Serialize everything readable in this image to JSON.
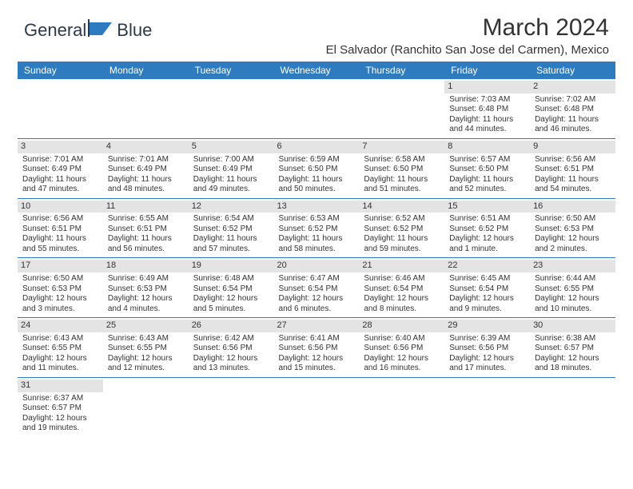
{
  "brand": {
    "name": "General",
    "suffix": "Blue",
    "logo_color": "#2f7bbf",
    "text_color": "#2b3a4a"
  },
  "title": "March 2024",
  "location": "El Salvador (Ranchito San Jose del Carmen), Mexico",
  "colors": {
    "header_bg": "#2f7bbf",
    "header_fg": "#ffffff",
    "daynum_bg": "#e4e4e4",
    "row_border": "#2f7bbf",
    "text": "#333333",
    "page_bg": "#ffffff"
  },
  "day_headers": [
    "Sunday",
    "Monday",
    "Tuesday",
    "Wednesday",
    "Thursday",
    "Friday",
    "Saturday"
  ],
  "weeks": [
    [
      {
        "n": "",
        "sr": "",
        "ss": "",
        "dl": ""
      },
      {
        "n": "",
        "sr": "",
        "ss": "",
        "dl": ""
      },
      {
        "n": "",
        "sr": "",
        "ss": "",
        "dl": ""
      },
      {
        "n": "",
        "sr": "",
        "ss": "",
        "dl": ""
      },
      {
        "n": "",
        "sr": "",
        "ss": "",
        "dl": ""
      },
      {
        "n": "1",
        "sr": "Sunrise: 7:03 AM",
        "ss": "Sunset: 6:48 PM",
        "dl": "Daylight: 11 hours and 44 minutes."
      },
      {
        "n": "2",
        "sr": "Sunrise: 7:02 AM",
        "ss": "Sunset: 6:48 PM",
        "dl": "Daylight: 11 hours and 46 minutes."
      }
    ],
    [
      {
        "n": "3",
        "sr": "Sunrise: 7:01 AM",
        "ss": "Sunset: 6:49 PM",
        "dl": "Daylight: 11 hours and 47 minutes."
      },
      {
        "n": "4",
        "sr": "Sunrise: 7:01 AM",
        "ss": "Sunset: 6:49 PM",
        "dl": "Daylight: 11 hours and 48 minutes."
      },
      {
        "n": "5",
        "sr": "Sunrise: 7:00 AM",
        "ss": "Sunset: 6:49 PM",
        "dl": "Daylight: 11 hours and 49 minutes."
      },
      {
        "n": "6",
        "sr": "Sunrise: 6:59 AM",
        "ss": "Sunset: 6:50 PM",
        "dl": "Daylight: 11 hours and 50 minutes."
      },
      {
        "n": "7",
        "sr": "Sunrise: 6:58 AM",
        "ss": "Sunset: 6:50 PM",
        "dl": "Daylight: 11 hours and 51 minutes."
      },
      {
        "n": "8",
        "sr": "Sunrise: 6:57 AM",
        "ss": "Sunset: 6:50 PM",
        "dl": "Daylight: 11 hours and 52 minutes."
      },
      {
        "n": "9",
        "sr": "Sunrise: 6:56 AM",
        "ss": "Sunset: 6:51 PM",
        "dl": "Daylight: 11 hours and 54 minutes."
      }
    ],
    [
      {
        "n": "10",
        "sr": "Sunrise: 6:56 AM",
        "ss": "Sunset: 6:51 PM",
        "dl": "Daylight: 11 hours and 55 minutes."
      },
      {
        "n": "11",
        "sr": "Sunrise: 6:55 AM",
        "ss": "Sunset: 6:51 PM",
        "dl": "Daylight: 11 hours and 56 minutes."
      },
      {
        "n": "12",
        "sr": "Sunrise: 6:54 AM",
        "ss": "Sunset: 6:52 PM",
        "dl": "Daylight: 11 hours and 57 minutes."
      },
      {
        "n": "13",
        "sr": "Sunrise: 6:53 AM",
        "ss": "Sunset: 6:52 PM",
        "dl": "Daylight: 11 hours and 58 minutes."
      },
      {
        "n": "14",
        "sr": "Sunrise: 6:52 AM",
        "ss": "Sunset: 6:52 PM",
        "dl": "Daylight: 11 hours and 59 minutes."
      },
      {
        "n": "15",
        "sr": "Sunrise: 6:51 AM",
        "ss": "Sunset: 6:52 PM",
        "dl": "Daylight: 12 hours and 1 minute."
      },
      {
        "n": "16",
        "sr": "Sunrise: 6:50 AM",
        "ss": "Sunset: 6:53 PM",
        "dl": "Daylight: 12 hours and 2 minutes."
      }
    ],
    [
      {
        "n": "17",
        "sr": "Sunrise: 6:50 AM",
        "ss": "Sunset: 6:53 PM",
        "dl": "Daylight: 12 hours and 3 minutes."
      },
      {
        "n": "18",
        "sr": "Sunrise: 6:49 AM",
        "ss": "Sunset: 6:53 PM",
        "dl": "Daylight: 12 hours and 4 minutes."
      },
      {
        "n": "19",
        "sr": "Sunrise: 6:48 AM",
        "ss": "Sunset: 6:54 PM",
        "dl": "Daylight: 12 hours and 5 minutes."
      },
      {
        "n": "20",
        "sr": "Sunrise: 6:47 AM",
        "ss": "Sunset: 6:54 PM",
        "dl": "Daylight: 12 hours and 6 minutes."
      },
      {
        "n": "21",
        "sr": "Sunrise: 6:46 AM",
        "ss": "Sunset: 6:54 PM",
        "dl": "Daylight: 12 hours and 8 minutes."
      },
      {
        "n": "22",
        "sr": "Sunrise: 6:45 AM",
        "ss": "Sunset: 6:54 PM",
        "dl": "Daylight: 12 hours and 9 minutes."
      },
      {
        "n": "23",
        "sr": "Sunrise: 6:44 AM",
        "ss": "Sunset: 6:55 PM",
        "dl": "Daylight: 12 hours and 10 minutes."
      }
    ],
    [
      {
        "n": "24",
        "sr": "Sunrise: 6:43 AM",
        "ss": "Sunset: 6:55 PM",
        "dl": "Daylight: 12 hours and 11 minutes."
      },
      {
        "n": "25",
        "sr": "Sunrise: 6:43 AM",
        "ss": "Sunset: 6:55 PM",
        "dl": "Daylight: 12 hours and 12 minutes."
      },
      {
        "n": "26",
        "sr": "Sunrise: 6:42 AM",
        "ss": "Sunset: 6:56 PM",
        "dl": "Daylight: 12 hours and 13 minutes."
      },
      {
        "n": "27",
        "sr": "Sunrise: 6:41 AM",
        "ss": "Sunset: 6:56 PM",
        "dl": "Daylight: 12 hours and 15 minutes."
      },
      {
        "n": "28",
        "sr": "Sunrise: 6:40 AM",
        "ss": "Sunset: 6:56 PM",
        "dl": "Daylight: 12 hours and 16 minutes."
      },
      {
        "n": "29",
        "sr": "Sunrise: 6:39 AM",
        "ss": "Sunset: 6:56 PM",
        "dl": "Daylight: 12 hours and 17 minutes."
      },
      {
        "n": "30",
        "sr": "Sunrise: 6:38 AM",
        "ss": "Sunset: 6:57 PM",
        "dl": "Daylight: 12 hours and 18 minutes."
      }
    ],
    [
      {
        "n": "31",
        "sr": "Sunrise: 6:37 AM",
        "ss": "Sunset: 6:57 PM",
        "dl": "Daylight: 12 hours and 19 minutes."
      },
      {
        "n": "",
        "sr": "",
        "ss": "",
        "dl": ""
      },
      {
        "n": "",
        "sr": "",
        "ss": "",
        "dl": ""
      },
      {
        "n": "",
        "sr": "",
        "ss": "",
        "dl": ""
      },
      {
        "n": "",
        "sr": "",
        "ss": "",
        "dl": ""
      },
      {
        "n": "",
        "sr": "",
        "ss": "",
        "dl": ""
      },
      {
        "n": "",
        "sr": "",
        "ss": "",
        "dl": ""
      }
    ]
  ]
}
